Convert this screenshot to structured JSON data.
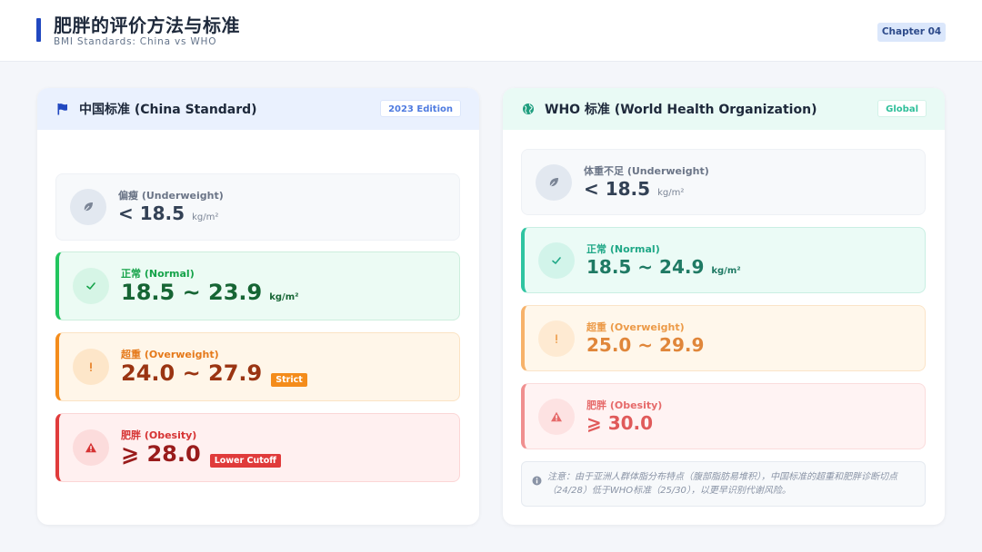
{
  "header": {
    "title": "肥胖的评价方法与标准",
    "subtitle": "BMI Standards: China vs WHO",
    "chapter": "Chapter 04"
  },
  "colors": {
    "accent": "#2148c0",
    "normal": "#22c55e",
    "overweight": "#f48c1b",
    "obesity": "#e03b3b",
    "who_accent": "#2fc4a1"
  },
  "china": {
    "icon": "flag-icon",
    "title": "中国标准 (China Standard)",
    "tag": "2023 Edition",
    "items": [
      {
        "icon": "leaf-icon",
        "label": "偏瘦 (Underweight)",
        "value": "< 18.5",
        "unit": "kg/m²"
      },
      {
        "icon": "check-icon",
        "label": "正常 (Normal)",
        "value": "18.5 ~ 23.9",
        "unit": "kg/m²"
      },
      {
        "icon": "exclamation-icon",
        "label": "超重 (Overweight)",
        "value": "24.0 ~ 27.9",
        "badge": "Strict"
      },
      {
        "icon": "warning-icon",
        "label": "肥胖 (Obesity)",
        "value": "⩾ 28.0",
        "badge": "Lower Cutoff"
      }
    ]
  },
  "who": {
    "icon": "globe-icon",
    "title": "WHO 标准 (World Health Organization)",
    "tag": "Global",
    "items": [
      {
        "icon": "leaf-icon",
        "label": "体重不足 (Underweight)",
        "value": "< 18.5",
        "unit": "kg/m²"
      },
      {
        "icon": "check-icon",
        "label": "正常 (Normal)",
        "value": "18.5 ~ 24.9",
        "unit": "kg/m²"
      },
      {
        "icon": "exclamation-icon",
        "label": "超重 (Overweight)",
        "value": "25.0 ~ 29.9"
      },
      {
        "icon": "warning-icon",
        "label": "肥胖 (Obesity)",
        "value": "⩾ 30.0"
      }
    ],
    "note": {
      "icon": "info-icon",
      "text": "注意：由于亚洲人群体脂分布特点（腹部脂肪易堆积），中国标准的超重和肥胖诊断切点（24/28）低于WHO标准（25/30），以更早识别代谢风险。"
    }
  }
}
